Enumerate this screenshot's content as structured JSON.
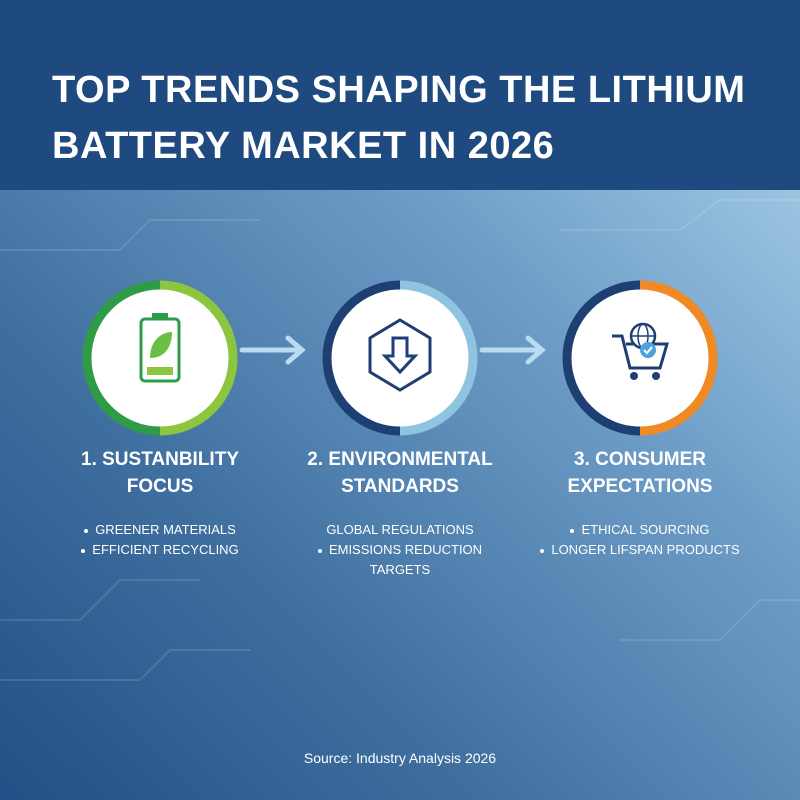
{
  "header": {
    "title": "TOP TRENDS SHAPING THE LITHIUM BATTERY MARKET IN 2026"
  },
  "trends": [
    {
      "heading": "1. SUSTANBILITY FOCUS",
      "items": [
        "GREENER MATERIALS",
        "EFFICIENT RECYCLING"
      ]
    },
    {
      "heading": "2. ENVIRONMENTAL STANDARDS",
      "items": [
        "GLOBAL REGULATIONS",
        "EMISSIONS REDUCTION TARGETS"
      ]
    },
    {
      "heading": "3. CONSUMER EXPECTATIONS",
      "items": [
        "ETHICAL SOURCING",
        "LONGER LIFSPAN PRODUCTS"
      ]
    }
  ],
  "source": "Source: Industry Analysis 2026"
}
